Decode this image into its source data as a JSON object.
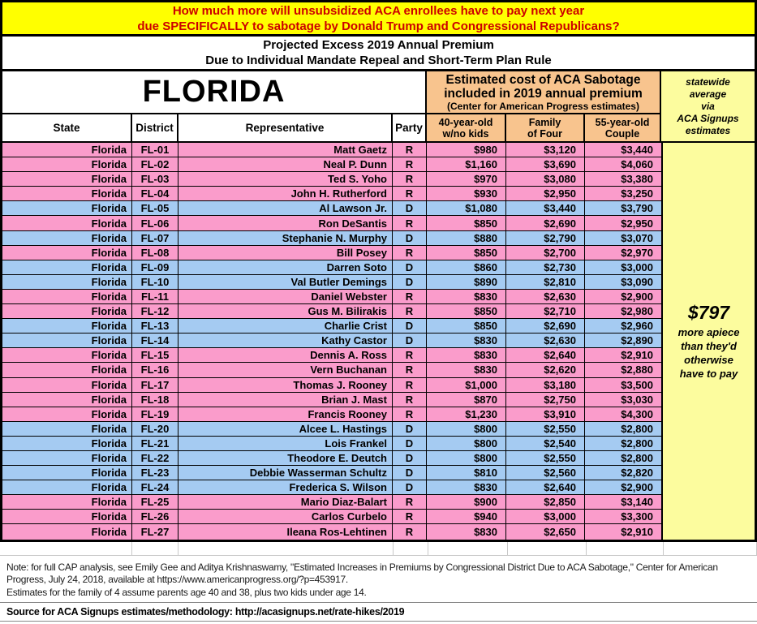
{
  "banner": {
    "line1": "How much more will unsubsidized ACA enrollees have to pay next year",
    "line2": "due SPECIFICALLY to sabotage by Donald Trump and Congressional Republicans?"
  },
  "subheader": {
    "line1": "Projected Excess 2019 Annual Premium",
    "line2": "Due to Individual Mandate Repeal and Short-Term Plan Rule"
  },
  "table": {
    "state_title": "FLORIDA",
    "cap_header": {
      "line1": "Estimated cost of ACA Sabotage",
      "line2": "included in 2019 annual premium",
      "line3": "(Center for American Progress estimates)"
    },
    "columns": {
      "state": "State",
      "district": "District",
      "representative": "Representative",
      "party": "Party"
    },
    "money_labels": [
      {
        "line1": "40-year-old",
        "line2": "w/no kids"
      },
      {
        "line1": "Family",
        "line2": "of Four"
      },
      {
        "line1": "55-year-old",
        "line2": "Couple"
      }
    ]
  },
  "sidebar": {
    "header": "statewide\naverage\nvia\nACA Signups\nestimates",
    "amount": "$797",
    "caption": "more apiece\nthan they'd\notherwise\nhave to pay"
  },
  "footer": {
    "note1": "Note: for full CAP analysis, see Emily Gee and Aditya Krishnaswamy, \"Estimated Increases in Premiums by Congressional District Due to ACA Sabotage,\" Center for American Progress, July 24, 2018, available at https://www.americanprogress.org/?p=453917.",
    "note2": "Estimates for the family of 4 assume parents age 40 and 38, plus two kids under age 14.",
    "source": "Source for ACA Signups estimates/methodology: http://acasignups.net/rate-hikes/2019"
  },
  "colors": {
    "banner_bg": "#FFFF00",
    "banner_text": "#CC0000",
    "cap_header_bg": "#F8C48E",
    "sidebar_bg": "#FCFC9E",
    "republican_row": "#FA9CCB",
    "democrat_row": "#A5CBF2",
    "border": "#000000"
  },
  "chart_data": {
    "type": "table",
    "title": "Projected Excess 2019 Annual Premium Due to Individual Mandate Repeal and Short-Term Plan Rule",
    "state": "Florida",
    "statewide_average_excess": 797,
    "columns": [
      "State",
      "District",
      "Representative",
      "Party",
      "40-year-old w/no kids",
      "Family of Four",
      "55-year-old Couple"
    ],
    "rows": [
      [
        "Florida",
        "FL-01",
        "Matt Gaetz",
        "R",
        "$980",
        "$3,120",
        "$3,440"
      ],
      [
        "Florida",
        "FL-02",
        "Neal P. Dunn",
        "R",
        "$1,160",
        "$3,690",
        "$4,060"
      ],
      [
        "Florida",
        "FL-03",
        "Ted S. Yoho",
        "R",
        "$970",
        "$3,080",
        "$3,380"
      ],
      [
        "Florida",
        "FL-04",
        "John H. Rutherford",
        "R",
        "$930",
        "$2,950",
        "$3,250"
      ],
      [
        "Florida",
        "FL-05",
        "Al Lawson Jr.",
        "D",
        "$1,080",
        "$3,440",
        "$3,790"
      ],
      [
        "Florida",
        "FL-06",
        "Ron DeSantis",
        "R",
        "$850",
        "$2,690",
        "$2,950"
      ],
      [
        "Florida",
        "FL-07",
        "Stephanie N. Murphy",
        "D",
        "$880",
        "$2,790",
        "$3,070"
      ],
      [
        "Florida",
        "FL-08",
        "Bill Posey",
        "R",
        "$850",
        "$2,700",
        "$2,970"
      ],
      [
        "Florida",
        "FL-09",
        "Darren Soto",
        "D",
        "$860",
        "$2,730",
        "$3,000"
      ],
      [
        "Florida",
        "FL-10",
        "Val Butler Demings",
        "D",
        "$890",
        "$2,810",
        "$3,090"
      ],
      [
        "Florida",
        "FL-11",
        "Daniel Webster",
        "R",
        "$830",
        "$2,630",
        "$2,900"
      ],
      [
        "Florida",
        "FL-12",
        "Gus M. Bilirakis",
        "R",
        "$850",
        "$2,710",
        "$2,980"
      ],
      [
        "Florida",
        "FL-13",
        "Charlie Crist",
        "D",
        "$850",
        "$2,690",
        "$2,960"
      ],
      [
        "Florida",
        "FL-14",
        "Kathy Castor",
        "D",
        "$830",
        "$2,630",
        "$2,890"
      ],
      [
        "Florida",
        "FL-15",
        "Dennis A. Ross",
        "R",
        "$830",
        "$2,640",
        "$2,910"
      ],
      [
        "Florida",
        "FL-16",
        "Vern Buchanan",
        "R",
        "$830",
        "$2,620",
        "$2,880"
      ],
      [
        "Florida",
        "FL-17",
        "Thomas J. Rooney",
        "R",
        "$1,000",
        "$3,180",
        "$3,500"
      ],
      [
        "Florida",
        "FL-18",
        "Brian J. Mast",
        "R",
        "$870",
        "$2,750",
        "$3,030"
      ],
      [
        "Florida",
        "FL-19",
        "Francis Rooney",
        "R",
        "$1,230",
        "$3,910",
        "$4,300"
      ],
      [
        "Florida",
        "FL-20",
        "Alcee L. Hastings",
        "D",
        "$800",
        "$2,550",
        "$2,800"
      ],
      [
        "Florida",
        "FL-21",
        "Lois Frankel",
        "D",
        "$800",
        "$2,540",
        "$2,800"
      ],
      [
        "Florida",
        "FL-22",
        "Theodore E. Deutch",
        "D",
        "$800",
        "$2,550",
        "$2,800"
      ],
      [
        "Florida",
        "FL-23",
        "Debbie Wasserman Schultz",
        "D",
        "$810",
        "$2,560",
        "$2,820"
      ],
      [
        "Florida",
        "FL-24",
        "Frederica S. Wilson",
        "D",
        "$830",
        "$2,640",
        "$2,900"
      ],
      [
        "Florida",
        "FL-25",
        "Mario Diaz-Balart",
        "R",
        "$900",
        "$2,850",
        "$3,140"
      ],
      [
        "Florida",
        "FL-26",
        "Carlos Curbelo",
        "R",
        "$940",
        "$3,000",
        "$3,300"
      ],
      [
        "Florida",
        "FL-27",
        "Ileana Ros-Lehtinen",
        "R",
        "$830",
        "$2,650",
        "$2,910"
      ]
    ]
  }
}
